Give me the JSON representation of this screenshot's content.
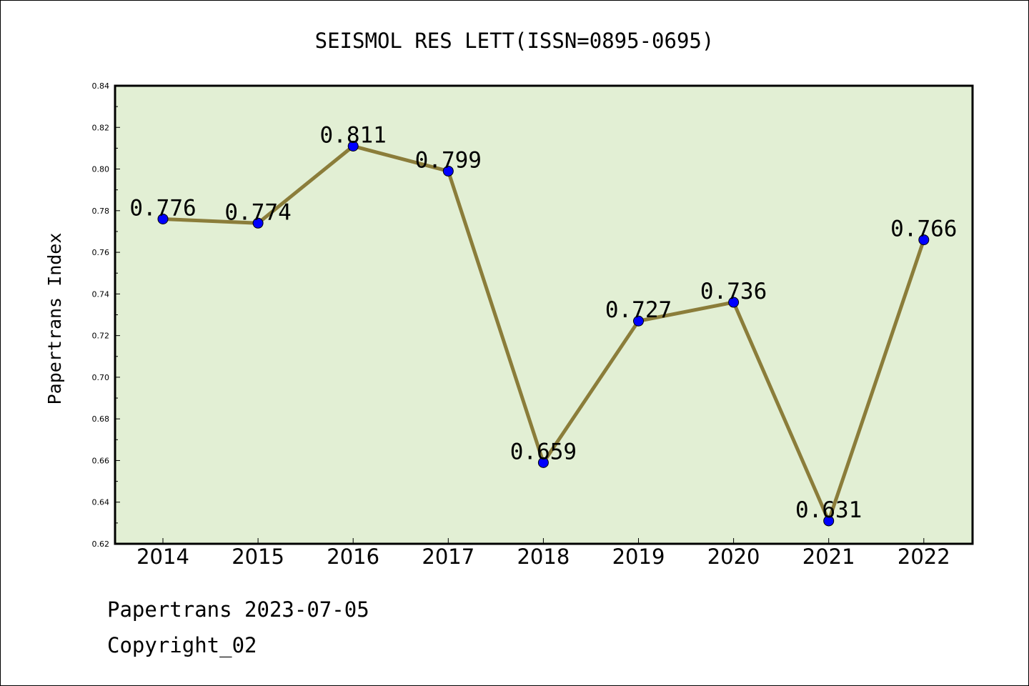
{
  "chart_data": {
    "type": "line",
    "title": "SEISMOL RES LETT(ISSN=0895-0695)",
    "xlabel": "",
    "ylabel": "Papertrans Index",
    "categories": [
      "2014",
      "2015",
      "2016",
      "2017",
      "2018",
      "2019",
      "2020",
      "2021",
      "2022"
    ],
    "values": [
      0.776,
      0.774,
      0.811,
      0.799,
      0.659,
      0.727,
      0.736,
      0.631,
      0.766
    ],
    "data_labels": [
      "0.776",
      "0.774",
      "0.811",
      "0.799",
      "0.659",
      "0.727",
      "0.736",
      "0.631",
      "0.766"
    ],
    "ylim": [
      0.62,
      0.84
    ],
    "yticks": [
      0.62,
      0.64,
      0.66,
      0.68,
      0.7,
      0.72,
      0.74,
      0.76,
      0.78,
      0.8,
      0.82,
      0.84
    ],
    "ytick_labels": [
      "0.62",
      "0.64",
      "0.66",
      "0.68",
      "0.70",
      "0.72",
      "0.74",
      "0.76",
      "0.78",
      "0.80",
      "0.82",
      "0.84"
    ],
    "grid": false,
    "legend": "none",
    "colors": {
      "plot_background": "#e2efd4",
      "line": "#8b7d3a",
      "marker": "#0000ff"
    }
  },
  "footer": {
    "line1": "Papertrans 2023-07-05",
    "line2": "Copyright_02"
  }
}
